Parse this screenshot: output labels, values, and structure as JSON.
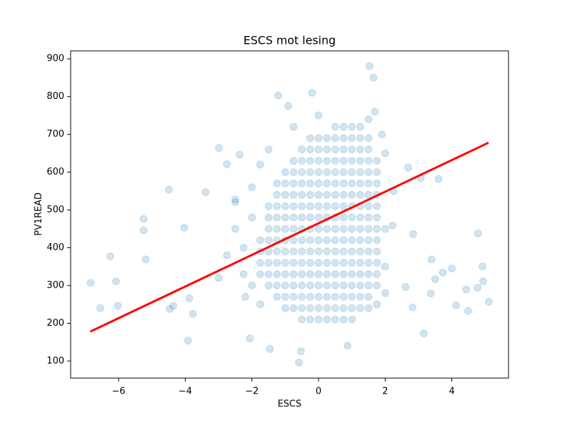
{
  "chart_data": {
    "type": "scatter",
    "title": "ESCS mot lesing",
    "xlabel": "ESCS",
    "ylabel": "PV1READ",
    "xlim": [
      -7.44,
      5.7
    ],
    "ylim": [
      55,
      921
    ],
    "xticks": [
      {
        "value": -6,
        "label": "−6"
      },
      {
        "value": -4,
        "label": "−4"
      },
      {
        "value": -2,
        "label": "−2"
      },
      0,
      2,
      4
    ],
    "yticks": [
      100,
      200,
      300,
      400,
      500,
      600,
      700,
      800,
      900
    ],
    "color": "#1f77b4",
    "alpha": 0.2,
    "x": [
      -6.84,
      -6.55,
      -6.25,
      -6.08,
      -6.02,
      -5.25,
      -5.25,
      -5.19,
      -4.49,
      -4.47,
      -4.36,
      -4.03,
      -3.92,
      -3.88,
      -3.77,
      -3.39,
      -2.99,
      -2.75,
      -2.5,
      -2.37,
      -1.21,
      -0.91,
      -0.19,
      1.53,
      1.65,
      1.69,
      3.07,
      3.6,
      3.39,
      3.37,
      3.5,
      3.73,
      4.0,
      4.13,
      4.43,
      4.49,
      4.77,
      4.79,
      4.92,
      4.94,
      5.11,
      3.16,
      2.82,
      2.61,
      2.22,
      2.84,
      2.69,
      -0.59,
      -0.53,
      -1.46,
      -2.06,
      0.87,
      -2.5,
      -2.25,
      -2,
      -2.25,
      -2,
      -2.75,
      -3,
      -2.5,
      -2,
      -1.75,
      -1.5,
      -2.2,
      -1.75,
      2,
      2,
      2,
      2.25,
      2,
      1.75,
      1.9,
      1.5,
      0,
      -0.75,
      0.5,
      0.75,
      1,
      1.25,
      -0.25,
      0,
      0.25,
      0.5,
      0.75,
      1,
      1.25,
      1.5,
      -0.5,
      -0.25,
      0,
      0.25,
      0.5,
      0.75,
      1,
      1.25,
      1.5,
      -0.75,
      -0.5,
      -0.25,
      0,
      0.25,
      0.5,
      0.75,
      1,
      1.25,
      1.5,
      1.75,
      -1,
      -0.75,
      -0.5,
      -0.25,
      0,
      0.25,
      0.5,
      0.75,
      1,
      1.25,
      1.5,
      1.75,
      -1.25,
      -1,
      -0.75,
      -0.5,
      -0.25,
      0,
      0.25,
      0.5,
      0.75,
      1,
      1.25,
      1.5,
      1.75,
      -1.25,
      -1,
      -0.75,
      -0.5,
      -0.25,
      0,
      0.25,
      0.5,
      0.75,
      1,
      1.25,
      1.5,
      1.75,
      -1.5,
      -1.25,
      -1,
      -0.75,
      -0.5,
      -0.25,
      0,
      0.25,
      0.5,
      0.75,
      1,
      1.25,
      1.5,
      1.75,
      -1.5,
      -1.25,
      -1,
      -0.75,
      -0.5,
      -0.25,
      0,
      0.25,
      0.5,
      0.75,
      1,
      1.25,
      1.5,
      1.75,
      -1.5,
      -1.25,
      -1,
      -0.75,
      -0.5,
      -0.25,
      0,
      0.25,
      0.5,
      0.75,
      1,
      1.25,
      1.5,
      1.75,
      -1.75,
      -1.5,
      -1.25,
      -1,
      -0.75,
      -0.5,
      -0.25,
      0,
      0.25,
      0.5,
      0.75,
      1,
      1.25,
      1.5,
      1.75,
      -1.75,
      -1.5,
      -1.25,
      -1,
      -0.75,
      -0.5,
      -0.25,
      0,
      0.25,
      0.5,
      0.75,
      1,
      1.25,
      1.5,
      1.75,
      -1.75,
      -1.5,
      -1.25,
      -1,
      -0.75,
      -0.5,
      -0.25,
      0,
      0.25,
      0.5,
      0.75,
      1,
      1.25,
      1.5,
      1.75,
      -1.75,
      -1.5,
      -1.25,
      -1,
      -0.75,
      -0.5,
      -0.25,
      0,
      0.25,
      0.5,
      0.75,
      1,
      1.25,
      1.5,
      1.75,
      -1.5,
      -1.25,
      -1,
      -0.75,
      -0.5,
      -0.25,
      0,
      0.25,
      0.5,
      0.75,
      1,
      1.25,
      1.5,
      1.75,
      -1.25,
      -1,
      -0.75,
      -0.5,
      -0.25,
      0,
      0.25,
      0.5,
      0.75,
      1,
      1.25,
      1.5,
      -1,
      -0.75,
      -0.5,
      -0.25,
      0,
      0.25,
      0.5,
      0.75,
      1,
      1.25,
      1.5,
      -0.5,
      -0.25,
      0,
      0.25,
      0.5,
      0.75,
      1
    ],
    "y": [
      307,
      240,
      377,
      311,
      246,
      476,
      446,
      369,
      554,
      238,
      246,
      453,
      154,
      266,
      225,
      547,
      664,
      621,
      528,
      646,
      803,
      775,
      810,
      881,
      850,
      760,
      584,
      582,
      369,
      279,
      317,
      334,
      345,
      248,
      289,
      233,
      294,
      438,
      350,
      311,
      257,
      173,
      242,
      296,
      459,
      436,
      612,
      96,
      126,
      132,
      160,
      141,
      450,
      400,
      480,
      330,
      300,
      380,
      320,
      520,
      560,
      620,
      660,
      270,
      250,
      650,
      450,
      350,
      550,
      280,
      250,
      700,
      740,
      750,
      720,
      720,
      720,
      720,
      720,
      690,
      690,
      690,
      690,
      690,
      690,
      690,
      690,
      660,
      660,
      660,
      660,
      660,
      660,
      660,
      660,
      660,
      630,
      630,
      630,
      630,
      630,
      630,
      630,
      630,
      630,
      630,
      630,
      600,
      600,
      600,
      600,
      600,
      600,
      600,
      600,
      600,
      600,
      600,
      600,
      570,
      570,
      570,
      570,
      570,
      570,
      570,
      570,
      570,
      570,
      570,
      570,
      570,
      540,
      540,
      540,
      540,
      540,
      540,
      540,
      540,
      540,
      540,
      540,
      540,
      540,
      510,
      510,
      510,
      510,
      510,
      510,
      510,
      510,
      510,
      510,
      510,
      510,
      510,
      510,
      480,
      480,
      480,
      480,
      480,
      480,
      480,
      480,
      480,
      480,
      480,
      480,
      480,
      480,
      450,
      450,
      450,
      450,
      450,
      450,
      450,
      450,
      450,
      450,
      450,
      450,
      450,
      450,
      420,
      420,
      420,
      420,
      420,
      420,
      420,
      420,
      420,
      420,
      420,
      420,
      420,
      420,
      420,
      390,
      390,
      390,
      390,
      390,
      390,
      390,
      390,
      390,
      390,
      390,
      390,
      390,
      390,
      390,
      360,
      360,
      360,
      360,
      360,
      360,
      360,
      360,
      360,
      360,
      360,
      360,
      360,
      360,
      360,
      330,
      330,
      330,
      330,
      330,
      330,
      330,
      330,
      330,
      330,
      330,
      330,
      330,
      330,
      330,
      300,
      300,
      300,
      300,
      300,
      300,
      300,
      300,
      300,
      300,
      300,
      300,
      300,
      300,
      270,
      270,
      270,
      270,
      270,
      270,
      270,
      270,
      270,
      270,
      270,
      270,
      240,
      240,
      240,
      240,
      240,
      240,
      240,
      240,
      240,
      240,
      240,
      210,
      210,
      210,
      210,
      210,
      210,
      210
    ],
    "line": {
      "color": "#ff0000",
      "x": [
        -6.85,
        5.1
      ],
      "y": [
        178,
        678
      ]
    }
  }
}
